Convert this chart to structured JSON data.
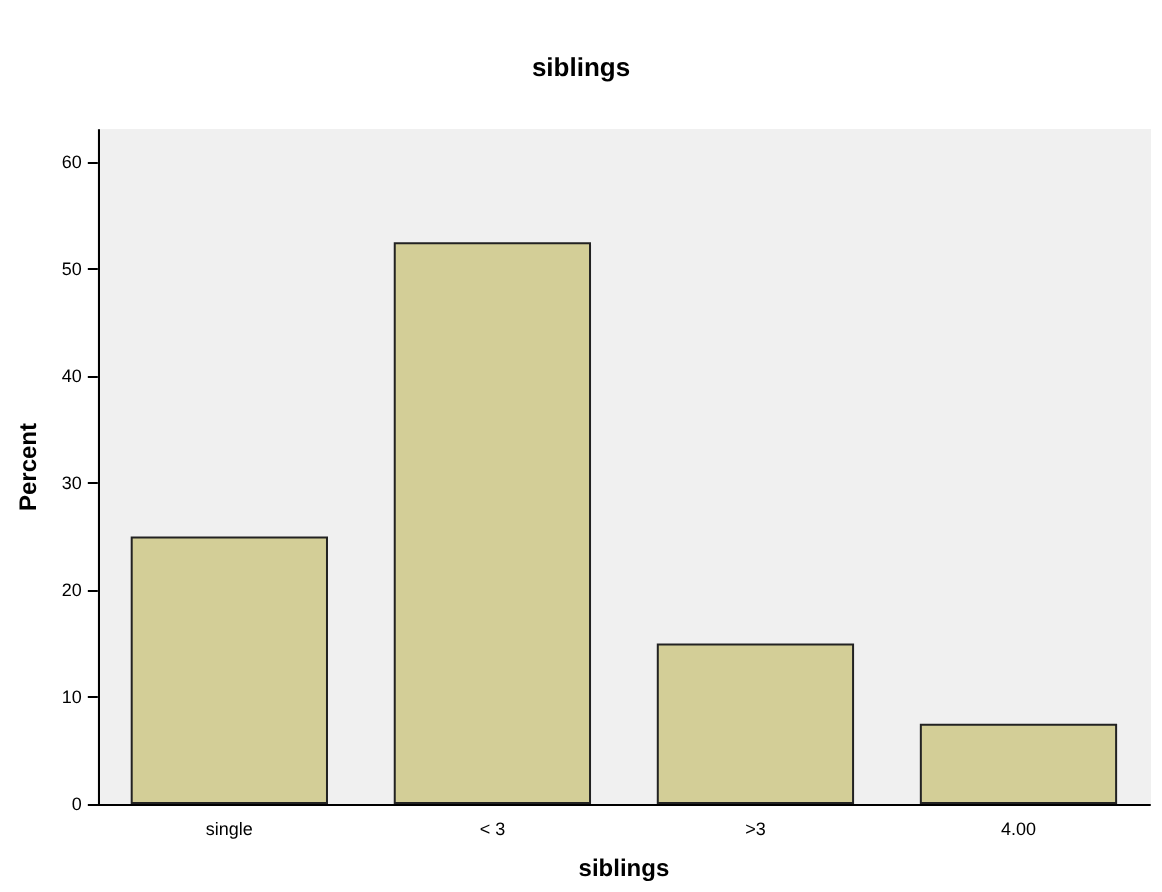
{
  "chart_data": {
    "type": "bar",
    "title": "siblings",
    "xlabel": "siblings",
    "ylabel": "Percent",
    "categories": [
      "single",
      "< 3",
      ">3",
      "4.00"
    ],
    "values": [
      25,
      52.5,
      15,
      7.5
    ],
    "color": "#d3ce97",
    "ylim": [
      0,
      63
    ],
    "yticks": [
      0,
      10,
      20,
      30,
      40,
      50,
      60
    ],
    "grid": false
  }
}
